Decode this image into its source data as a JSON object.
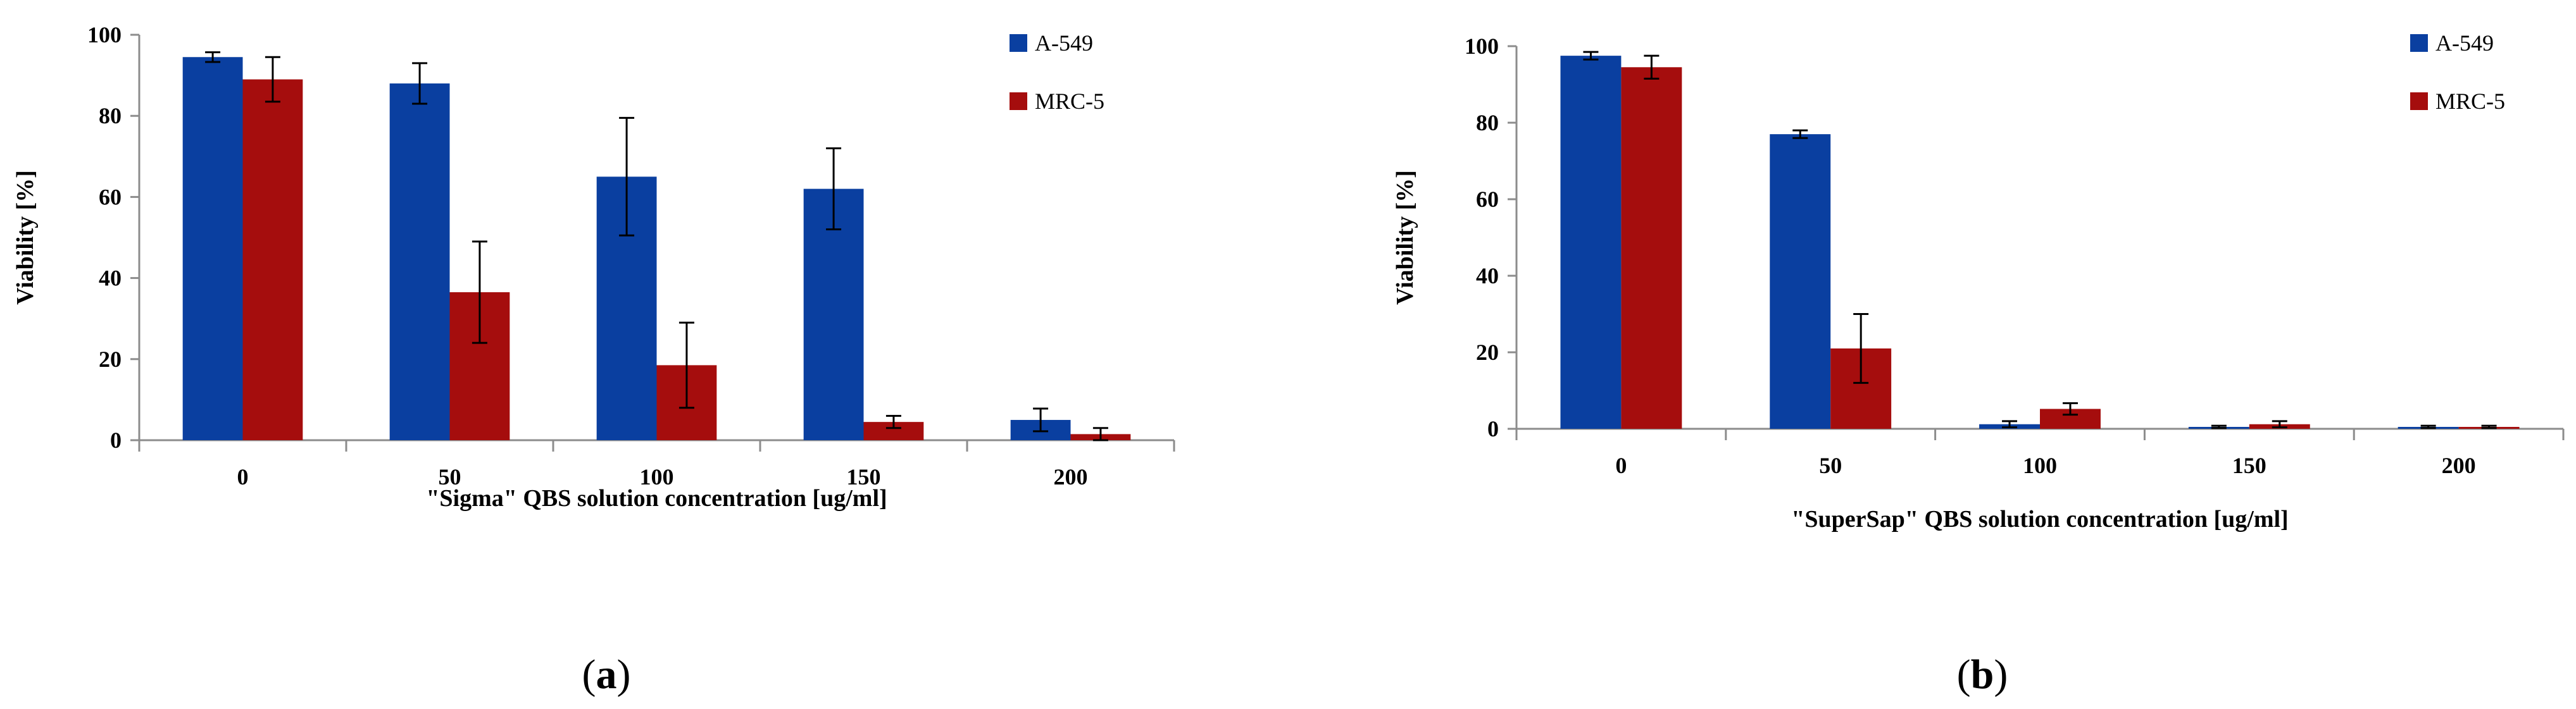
{
  "chart_data": [
    {
      "id": "a",
      "type": "bar",
      "caption_letter": "a",
      "xlabel": "\"Sigma\"  QBS solution concentration  [ug/ml]",
      "ylabel": "Viability [%]",
      "ylim": [
        0,
        100
      ],
      "yticks": [
        0,
        20,
        40,
        60,
        80,
        100
      ],
      "categories": [
        "0",
        "50",
        "100",
        "150",
        "200"
      ],
      "legend_position": "top-right",
      "series": [
        {
          "name": "A-549",
          "color": "#0a3fa0",
          "values": [
            94.5,
            88,
            65,
            62,
            5
          ],
          "errors": [
            1.2,
            5,
            14.5,
            10,
            2.8
          ]
        },
        {
          "name": "MRC-5",
          "color": "#a50d0d",
          "values": [
            89,
            36.5,
            18.5,
            4.5,
            1.5
          ],
          "errors": [
            5.5,
            12.5,
            10.5,
            1.5,
            1.5
          ]
        }
      ]
    },
    {
      "id": "b",
      "type": "bar",
      "caption_letter": "b",
      "xlabel": "\"SuperSap\"  QBS solution concentration  [ug/ml]",
      "ylabel": "Viability [%]",
      "ylim": [
        0,
        100
      ],
      "yticks": [
        0,
        20,
        40,
        60,
        80,
        100
      ],
      "categories": [
        "0",
        "50",
        "100",
        "150",
        "200"
      ],
      "legend_position": "top-right",
      "series": [
        {
          "name": "A-549",
          "color": "#0a3fa0",
          "values": [
            97.5,
            77,
            1.2,
            0.5,
            0.5
          ],
          "errors": [
            1,
            1,
            0.8,
            0.3,
            0.3
          ]
        },
        {
          "name": "MRC-5",
          "color": "#a50d0d",
          "values": [
            94.5,
            21,
            5.2,
            1.2,
            0.5
          ],
          "errors": [
            3,
            9,
            1.5,
            0.8,
            0.3
          ]
        }
      ]
    }
  ]
}
